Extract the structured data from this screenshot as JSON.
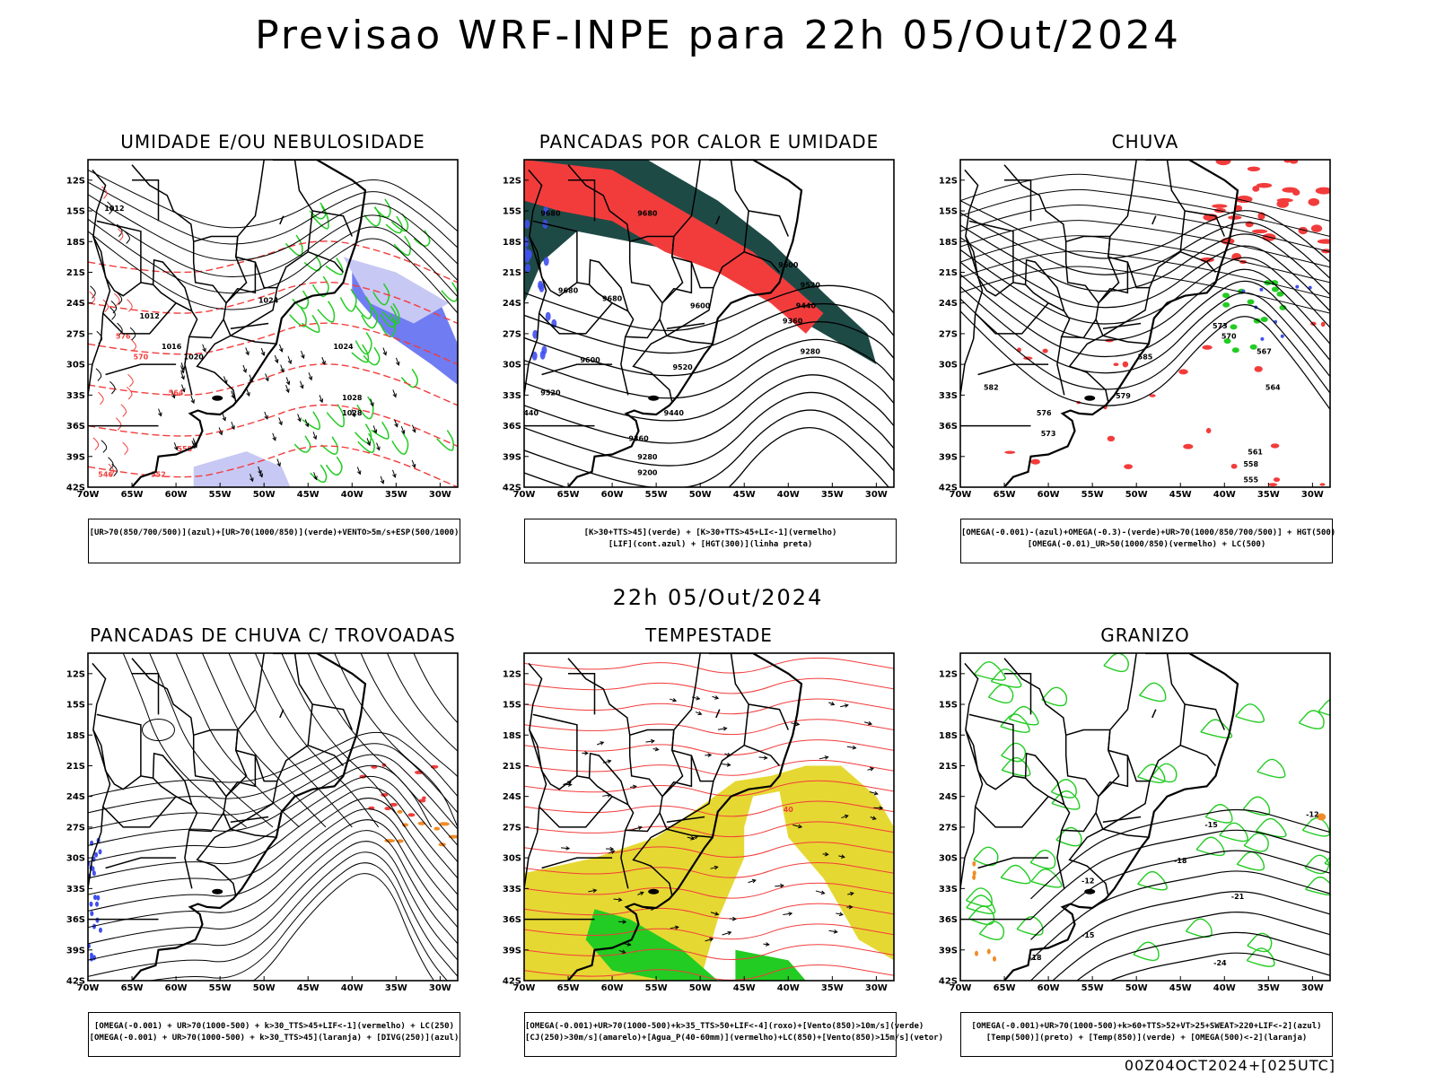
{
  "title": "Previsao WRF-INPE  para 22h 05/Out/2024",
  "mid_title": "22h 05/Out/2024",
  "footer": "00Z04OCT2024+[025UTC]",
  "axes": {
    "lat_labels": [
      "12S",
      "15S",
      "18S",
      "21S",
      "24S",
      "27S",
      "30S",
      "33S",
      "36S",
      "39S",
      "42S"
    ],
    "lon_labels": [
      "70W",
      "65W",
      "60W",
      "55W",
      "50W",
      "45W",
      "40W",
      "35W",
      "30W"
    ]
  },
  "colors": {
    "red": "#f23c3c",
    "green": "#22cc22",
    "blue": "#4050ee",
    "lightblue": "#c8c8f4",
    "orange": "#f08c28",
    "yellow": "#e6d832",
    "darkteal": "#1e4a46",
    "teal": "#3a7a70",
    "black": "#000000"
  },
  "panels": [
    {
      "title": "UMIDADE E/OU NEBULOSIDADE",
      "legend": [
        "[UR>70(850/700/500)](azul)+[UR>70(1000/850)](verde)+VENTO>5m/s+ESP(500/1000)"
      ],
      "labels": [
        "1012",
        "1016",
        "1020",
        "1024",
        "1028",
        "576",
        "570",
        "564",
        "558",
        "552",
        "546"
      ]
    },
    {
      "title": "PANCADAS POR CALOR E UMIDADE",
      "legend": [
        "[K>30+TTS>45](verde) + [K>30+TTS>45+LI<-1](vermelho)",
        "[LIF](cont.azul) + [HGT(300)](linha preta)"
      ],
      "labels": [
        "9680",
        "9600",
        "9520",
        "9440",
        "9360",
        "9280",
        "9200"
      ]
    },
    {
      "title": "CHUVA",
      "legend": [
        "[OMEGA(-0.001)-(azul)+OMEGA(-0.3)-(verde)+UR>70(1000/850/700/500)] + HGT(500)",
        "[OMEGA(-0.01)_UR>50(1000/850)(vermelho) + LC(500)"
      ],
      "labels": [
        "585",
        "582",
        "579",
        "576",
        "573",
        "570",
        "567",
        "564",
        "561",
        "558",
        "555"
      ]
    },
    {
      "title": "PANCADAS DE CHUVA C/ TROVOADAS",
      "legend": [
        "[OMEGA(-0.001) + UR>70(1000-500) + k>30_TTS>45+LIF<-1](vermelho) + LC(250)",
        "[OMEGA(-0.001) + UR>70(1000-500) + k>30_TTS>45](laranja) + [DIVG(250)](azul)"
      ],
      "labels": []
    },
    {
      "title": "TEMPESTADE",
      "legend": [
        "[OMEGA(-0.001)+UR>70(1000-500)+k>35_TTS>50+LIF<-4](roxo)+[Vento(850)>10m/s](verde)",
        "[CJ(250)>30m/s](amarelo)+[Agua_P(40-60mm)](vermelho)+LC(850)+[Vento(850)>15m/s](vetor)"
      ],
      "labels": [
        "40"
      ]
    },
    {
      "title": "GRANIZO",
      "legend": [
        "[OMEGA(-0.001)+UR>70(1000-500)+k>60+TTS>52+VT>25+SWEAT>220+LIF<-2](azul)",
        "[Temp(500)](preto) + [Temp(850)](verde) + [OMEGA(500)<-2](laranja)"
      ],
      "labels": [
        "-12",
        "-15",
        "-18",
        "-21",
        "-24"
      ]
    }
  ]
}
